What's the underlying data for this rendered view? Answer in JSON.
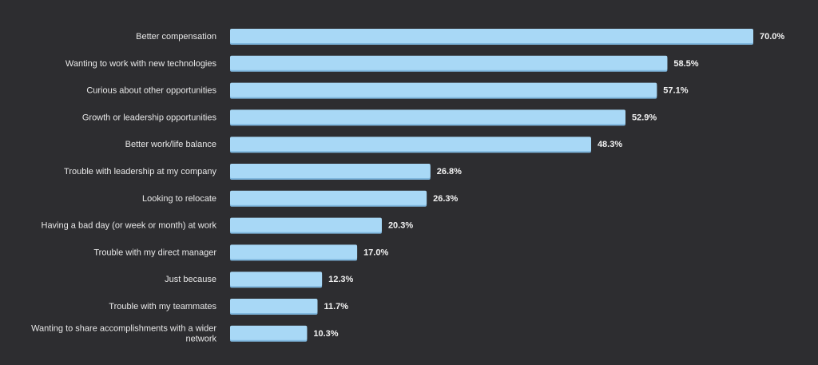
{
  "chart_data": {
    "type": "bar",
    "orientation": "horizontal",
    "categories": [
      [
        "Better compensation"
      ],
      [
        "Wanting to work with new technologies"
      ],
      [
        "Curious about other opportunities"
      ],
      [
        "Growth or leadership opportunities"
      ],
      [
        "Better work/life balance"
      ],
      [
        "Trouble with leadership at my company"
      ],
      [
        "Looking to relocate"
      ],
      [
        "Having a bad day (or week or month) at work"
      ],
      [
        "Trouble with my direct manager"
      ],
      [
        "Just because"
      ],
      [
        "Trouble with my teammates"
      ],
      [
        "Wanting to share accomplishments with a wider",
        "network"
      ]
    ],
    "values": [
      70.0,
      58.5,
      57.1,
      52.9,
      48.3,
      26.8,
      26.3,
      20.3,
      17.0,
      12.3,
      11.7,
      10.3
    ],
    "value_labels": [
      "70.0%",
      "58.5%",
      "57.1%",
      "52.9%",
      "48.3%",
      "26.8%",
      "26.3%",
      "20.3%",
      "17.0%",
      "12.3%",
      "11.7%",
      "10.3%"
    ],
    "xlim": [
      0,
      70
    ],
    "grid": false,
    "legend": "none",
    "colors": {
      "background": "#2d2d30",
      "bar": "#a8d8f6",
      "bar_shadow": "#7fb7de",
      "label": "#e8e8e8",
      "value": "#f2f2f2"
    }
  }
}
